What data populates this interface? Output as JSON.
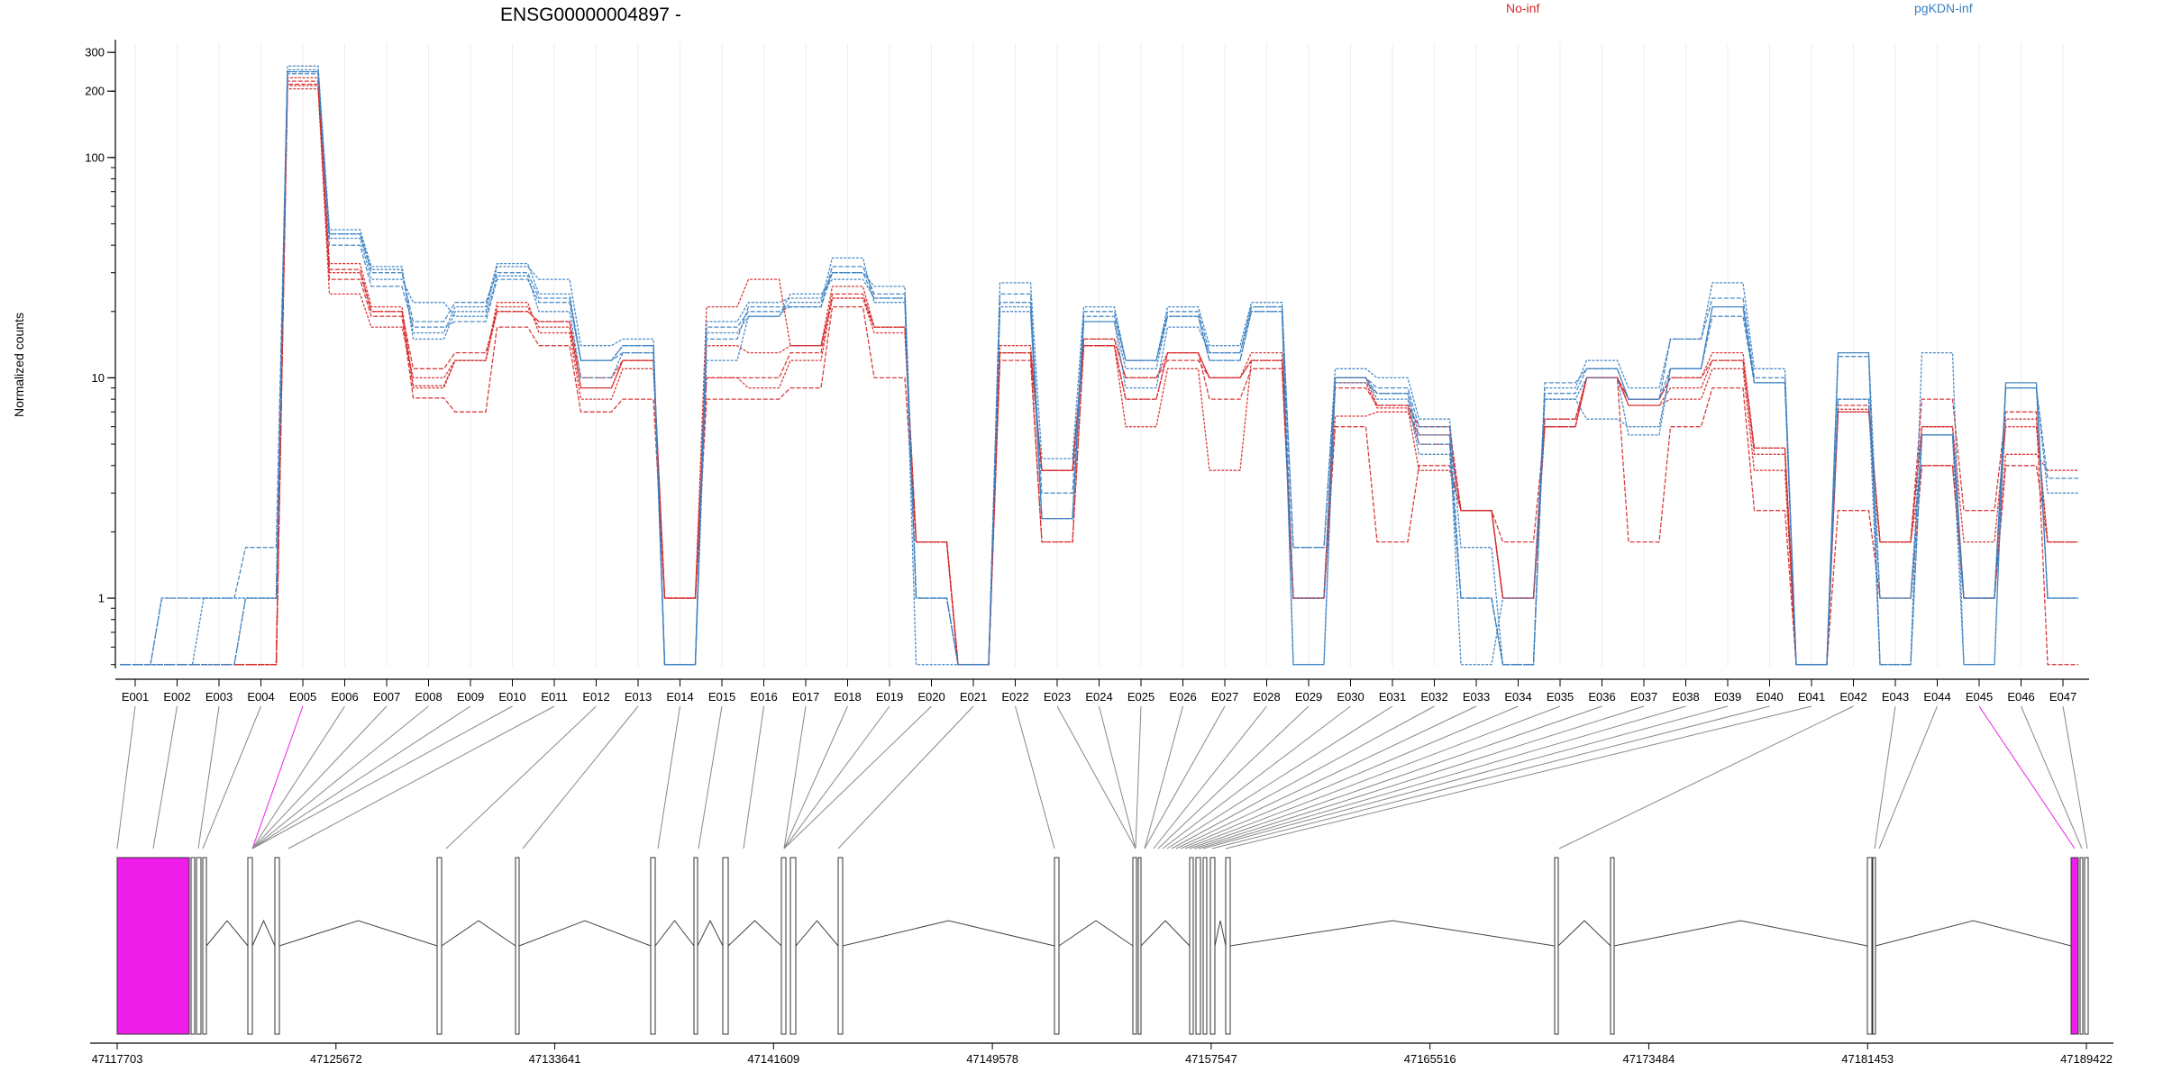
{
  "chart_data": {
    "type": "line",
    "title": "ENSG00000004897 -",
    "ylabel": "Normalized counts",
    "yscale": "log",
    "ylim": [
      0.48,
      330
    ],
    "yticks": [
      1,
      10,
      100,
      200,
      300
    ],
    "grid": "vertical only",
    "legend_placement": "top",
    "categories": [
      "E001",
      "E002",
      "E003",
      "E004",
      "E005",
      "E006",
      "E007",
      "E008",
      "E009",
      "E010",
      "E011",
      "E012",
      "E013",
      "E014",
      "E015",
      "E016",
      "E017",
      "E018",
      "E019",
      "E020",
      "E021",
      "E022",
      "E023",
      "E024",
      "E025",
      "E026",
      "E027",
      "E028",
      "E029",
      "E030",
      "E031",
      "E032",
      "E033",
      "E034",
      "E035",
      "E036",
      "E037",
      "E038",
      "E039",
      "E040",
      "E041",
      "E042",
      "E043",
      "E044",
      "E045",
      "E046",
      "E047"
    ],
    "series": [
      {
        "name": "No-inf",
        "color": "#d62728",
        "lines": [
          [
            0.5,
            0.5,
            0.5,
            0.5,
            230,
            33,
            21,
            9.2,
            12,
            21,
            17,
            9,
            12,
            1,
            21,
            28,
            14,
            26,
            17,
            1.8,
            0.5,
            14,
            3.8,
            15,
            10,
            13,
            10,
            13,
            1,
            6.7,
            7,
            5.5,
            2.5,
            1,
            6,
            10,
            8,
            10,
            13,
            4.8,
            0.5,
            7,
            1.8,
            6,
            1.8,
            6,
            1.8
          ],
          [
            0.5,
            0.5,
            0.5,
            0.5,
            215,
            28,
            19,
            8.1,
            7,
            17,
            14,
            7,
            8,
            1,
            8,
            8,
            9,
            21,
            10,
            1.8,
            0.5,
            12,
            1.8,
            14,
            8,
            13,
            8,
            11,
            1,
            6,
            1.8,
            4,
            2.5,
            1.8,
            6,
            10,
            1.8,
            6,
            9,
            2.5,
            0.5,
            2.5,
            1,
            4,
            1,
            4,
            1.8
          ],
          [
            0.5,
            0.5,
            0.5,
            0.5,
            205,
            24,
            17,
            10,
            12,
            22,
            16,
            8,
            11,
            1,
            10,
            9,
            12,
            23,
            16,
            1.8,
            0.5,
            13,
            3.8,
            14,
            6,
            11,
            3.8,
            12,
            1,
            9.5,
            7.3,
            3.8,
            2.5,
            1,
            6.5,
            10,
            7.5,
            8,
            11,
            3.8,
            0.5,
            7,
            1.8,
            4,
            1,
            4.5,
            3.8
          ],
          [
            0.5,
            0.5,
            0.5,
            0.5,
            222,
            31,
            20,
            11,
            13,
            20,
            18,
            10,
            12,
            1,
            10,
            10,
            13,
            24,
            17,
            1.8,
            0.5,
            13,
            3.8,
            15,
            10,
            12,
            10,
            12,
            1,
            9,
            7.5,
            6,
            2.5,
            1,
            6.5,
            10,
            8,
            10,
            12,
            4.8,
            0.5,
            7.5,
            1.8,
            8,
            2.5,
            7,
            0.5
          ],
          [
            0.5,
            0.5,
            0.5,
            0.5,
            212,
            30,
            20,
            9,
            12,
            20,
            18,
            9,
            12,
            1,
            14,
            13,
            14,
            23,
            17,
            1.8,
            0.5,
            13,
            1.8,
            14,
            8,
            13,
            10,
            12,
            1,
            10,
            7.5,
            5,
            2.5,
            1,
            6,
            10,
            7.5,
            9,
            12,
            4.5,
            0.5,
            7.2,
            1.8,
            6,
            1,
            6.5,
            1.8
          ]
        ]
      },
      {
        "name": "pgKDN-inf",
        "color": "#3a7fc1",
        "lines": [
          [
            0.5,
            1,
            1,
            1,
            250,
            47,
            32,
            15,
            20,
            32,
            28,
            14,
            15,
            0.5,
            18,
            22,
            23,
            30,
            26,
            1,
            0.5,
            27,
            4.3,
            21,
            12,
            21,
            14,
            22,
            1.7,
            11,
            10,
            6.5,
            1.7,
            0.5,
            9,
            12,
            9,
            15,
            27,
            11,
            0.5,
            13,
            0.5,
            13,
            0.5,
            9.5,
            1
          ],
          [
            0.5,
            1,
            1,
            1.7,
            240,
            45,
            30,
            18,
            22,
            30,
            23,
            12,
            14,
            0.5,
            17,
            20,
            21,
            32,
            24,
            1,
            0.5,
            24,
            2.3,
            20,
            12,
            20,
            13,
            21,
            1.7,
            10,
            9,
            6,
            1,
            0.5,
            9.5,
            11,
            8,
            15,
            23,
            10,
            0.5,
            12.5,
            0.5,
            5.5,
            1,
            9,
            1
          ],
          [
            0.5,
            0.5,
            1,
            1,
            260,
            43,
            28,
            22,
            19,
            29,
            20,
            10,
            13,
            0.5,
            16,
            19,
            22,
            35,
            22,
            1,
            0.5,
            20,
            2.3,
            18,
            11,
            19,
            12,
            20,
            0.5,
            9.5,
            8.5,
            5.5,
            0.5,
            1,
            8,
            6.5,
            6,
            11,
            21,
            9.5,
            0.5,
            8,
            0.5,
            5.5,
            1,
            9,
            3
          ],
          [
            0.5,
            0.5,
            0.5,
            1,
            245,
            40,
            26,
            17,
            18,
            28,
            22,
            12,
            13,
            0.5,
            15,
            21,
            21,
            30,
            23,
            1,
            0.5,
            22,
            3,
            19,
            12,
            19,
            12,
            20,
            1,
            10,
            8.5,
            5,
            1,
            0.5,
            8.5,
            11,
            8,
            11,
            19,
            9.5,
            0.5,
            8,
            1,
            5.5,
            1,
            9,
            3.5
          ],
          [
            0.5,
            0.5,
            0.5,
            1,
            245,
            45,
            31,
            16,
            21,
            33,
            24,
            12,
            14,
            0.5,
            12,
            19,
            24,
            28,
            23,
            0.5,
            0.5,
            21,
            2.3,
            18,
            9,
            17,
            13,
            21,
            0.5,
            10,
            8,
            4.5,
            1,
            0.5,
            8,
            10,
            5.5,
            11,
            21,
            9.5,
            0.5,
            13,
            1,
            5.5,
            0.5,
            9.5,
            1
          ]
        ]
      }
    ],
    "genomic_axis": {
      "ticks": [
        "47117703",
        "47125672",
        "47133641",
        "47141609",
        "47149578",
        "47157547",
        "47165516",
        "47173484",
        "47181453",
        "47189422"
      ],
      "highlight_color": "#ee1ee8"
    }
  }
}
